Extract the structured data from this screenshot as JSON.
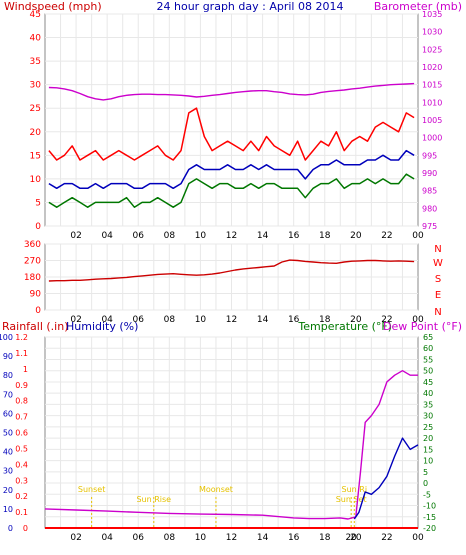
{
  "header": {
    "left": "Windspeed (mph)",
    "center": "24 hour graph day : April 08 2014",
    "right": "Barometer (mb)"
  },
  "colors": {
    "background": "#ffffff",
    "plot_bg": "#ffffff",
    "grid": "#e8e8e8",
    "red": "#ff0000",
    "darkred": "#cc0000",
    "blue": "#0000bb",
    "green": "#007700",
    "magenta": "#cc00cc",
    "sun": "#e6c200",
    "frame": "#888888"
  },
  "chart_data": [
    {
      "type": "line",
      "title": "24 hour graph day : April 08 2014",
      "ylabel": "Windspeed (mph)",
      "ylabel_right": "Barometer (mb)",
      "ylim": [
        0,
        45
      ],
      "ylim_right": [
        975,
        1035
      ],
      "yticks": [
        0,
        5,
        10,
        15,
        20,
        25,
        30,
        35,
        40,
        45
      ],
      "yticks_right": [
        975,
        980,
        985,
        990,
        995,
        1000,
        1005,
        1010,
        1015,
        1020,
        1025,
        1030,
        1035
      ],
      "xticks": [
        "02",
        "04",
        "06",
        "08",
        "10",
        "12",
        "14",
        "16",
        "18",
        "20",
        "22",
        "00"
      ],
      "grid": true,
      "series": [
        {
          "key": "gust",
          "color": "red",
          "values": [
            16,
            14,
            15,
            17,
            14,
            15,
            16,
            14,
            15,
            16,
            15,
            14,
            15,
            16,
            17,
            15,
            14,
            16,
            24,
            25,
            19,
            16,
            17,
            18,
            17,
            16,
            18,
            16,
            19,
            17,
            16,
            15,
            18,
            14,
            16,
            18,
            17,
            20,
            16,
            18,
            19,
            18,
            21,
            22,
            21,
            20,
            24,
            23
          ]
        },
        {
          "key": "average",
          "color": "blue",
          "values": [
            9,
            8,
            9,
            9,
            8,
            8,
            9,
            8,
            9,
            9,
            9,
            8,
            8,
            9,
            9,
            9,
            8,
            9,
            12,
            13,
            12,
            12,
            12,
            13,
            12,
            12,
            13,
            12,
            13,
            12,
            12,
            12,
            12,
            10,
            12,
            13,
            13,
            14,
            13,
            13,
            13,
            14,
            14,
            15,
            14,
            14,
            16,
            15
          ]
        },
        {
          "key": "lull",
          "color": "green",
          "values": [
            5,
            4,
            5,
            6,
            5,
            4,
            5,
            5,
            5,
            5,
            6,
            4,
            5,
            5,
            6,
            5,
            4,
            5,
            9,
            10,
            9,
            8,
            9,
            9,
            8,
            8,
            9,
            8,
            9,
            9,
            8,
            8,
            8,
            6,
            8,
            9,
            9,
            10,
            8,
            9,
            9,
            10,
            9,
            10,
            9,
            9,
            11,
            10
          ]
        },
        {
          "key": "barometer",
          "axis": "right",
          "color": "magenta",
          "values": [
            1014.2,
            1014.1,
            1013.8,
            1013.3,
            1012.5,
            1011.6,
            1011.0,
            1010.7,
            1011.0,
            1011.6,
            1012.0,
            1012.2,
            1012.3,
            1012.3,
            1012.2,
            1012.2,
            1012.1,
            1012.0,
            1011.8,
            1011.5,
            1011.7,
            1012.0,
            1012.2,
            1012.5,
            1012.8,
            1013.0,
            1013.2,
            1013.3,
            1013.3,
            1013.0,
            1012.8,
            1012.4,
            1012.2,
            1012.1,
            1012.3,
            1012.8,
            1013.1,
            1013.3,
            1013.5,
            1013.8,
            1014.0,
            1014.3,
            1014.6,
            1014.8,
            1015.0,
            1015.1,
            1015.2,
            1015.3
          ]
        }
      ]
    },
    {
      "type": "line",
      "ylim": [
        0,
        360
      ],
      "yticks": [
        0,
        90,
        180,
        270,
        360
      ],
      "compass_labels": [
        "N",
        "W",
        "S",
        "E",
        "N"
      ],
      "xticks": [
        "02",
        "04",
        "06",
        "08",
        "10",
        "12",
        "14",
        "16",
        "18",
        "20",
        "22",
        "00"
      ],
      "grid": true,
      "series": [
        {
          "key": "direction",
          "color": "darkred",
          "values": [
            158,
            160,
            160,
            162,
            162,
            165,
            168,
            170,
            172,
            175,
            178,
            182,
            186,
            190,
            194,
            196,
            198,
            195,
            192,
            190,
            192,
            196,
            202,
            210,
            218,
            224,
            228,
            232,
            236,
            240,
            262,
            272,
            270,
            265,
            262,
            258,
            256,
            255,
            262,
            266,
            268,
            270,
            270,
            268,
            266,
            268,
            266,
            264
          ]
        }
      ]
    },
    {
      "type": "line",
      "ylabel_left_1": "Rainfall (.in)",
      "ylabel_left_2": "Humidity (%)",
      "ylabel_right_1": "Temperature (°F)",
      "ylabel_right_2": "Dew Point (°F)",
      "ylim_rain": [
        0,
        1.2
      ],
      "ylim_humidity": [
        0,
        100
      ],
      "ylim_temperature": [
        -20,
        65
      ],
      "yticks_rain": [
        0,
        0.1,
        0.2,
        0.3,
        0.4,
        0.5,
        0.6,
        0.7,
        0.8,
        0.9,
        1,
        1.1,
        1.2
      ],
      "yticks_humidity": [
        0,
        10,
        20,
        30,
        40,
        50,
        60,
        70,
        80,
        90,
        100
      ],
      "yticks_temperature": [
        -20,
        -15,
        -10,
        -5,
        0,
        5,
        10,
        15,
        20,
        25,
        30,
        35,
        40,
        45,
        50,
        55,
        60,
        65
      ],
      "xticks": [
        "02",
        "04",
        "06",
        "08",
        "10",
        "12",
        "14",
        "16",
        "18",
        "20",
        "22",
        "00"
      ],
      "overlapping_xtick": "20",
      "grid": true,
      "annotations": [
        {
          "label": "Sunset",
          "hour": 3
        },
        {
          "label": "Sun Rise",
          "hour": 7
        },
        {
          "label": "Moonset",
          "hour": 11
        },
        {
          "label": "Sun Set",
          "hour": 19.7
        },
        {
          "label": "Sun Ri",
          "hour": 19.9
        }
      ],
      "series": [
        {
          "key": "temperature",
          "axis": "temperature",
          "color": "magenta",
          "hours": [
            0,
            2,
            4,
            6,
            8,
            10,
            12,
            14,
            16,
            17,
            18,
            19,
            19.5,
            20,
            20.3,
            20.6,
            21,
            21.5,
            22,
            22.5,
            23,
            23.5,
            24
          ],
          "values": [
            -11.5,
            -12,
            -12.5,
            -13,
            -13.5,
            -13.8,
            -14,
            -14.3,
            -15.5,
            -15.8,
            -15.8,
            -15.5,
            -16,
            -15,
            5,
            27,
            30,
            35,
            45,
            48,
            50,
            48,
            48
          ]
        },
        {
          "key": "dew_point",
          "axis": "temperature",
          "color": "blue",
          "hours": [
            19.9,
            20.2,
            20.6,
            21,
            21.5,
            22,
            22.5,
            23,
            23.5,
            24
          ],
          "values": [
            -16,
            -13,
            -4,
            -5,
            -2,
            3,
            12,
            20,
            15,
            17
          ]
        },
        {
          "key": "rainfall",
          "axis": "rain",
          "color": "red",
          "hours": [
            0,
            24
          ],
          "values": [
            0,
            0
          ]
        }
      ]
    }
  ]
}
